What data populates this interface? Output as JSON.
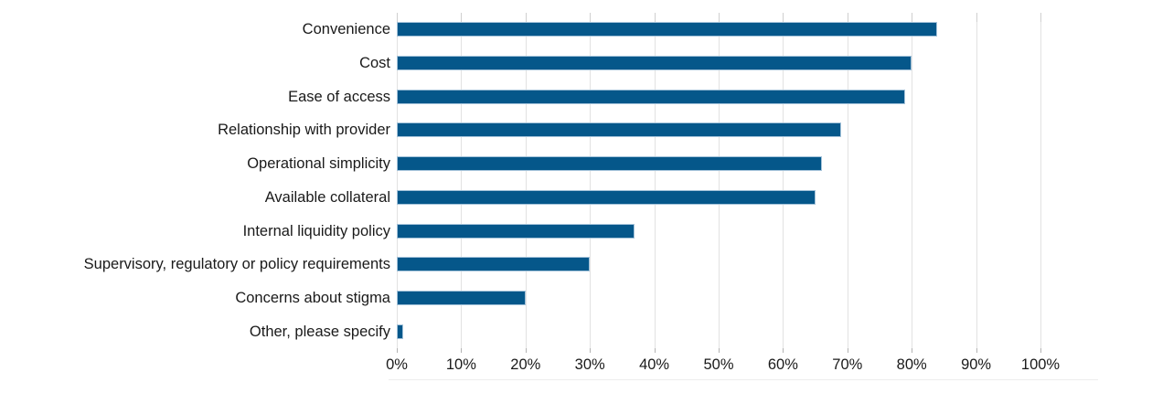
{
  "chart_data": {
    "type": "bar",
    "orientation": "horizontal",
    "title": "",
    "categories": [
      "Convenience",
      "Cost",
      "Ease of access",
      "Relationship with provider",
      "Operational simplicity",
      "Available collateral",
      "Internal liquidity policy",
      "Supervisory, regulatory or policy requirements",
      "Concerns about stigma",
      "Other, please specify"
    ],
    "values": [
      84,
      80,
      79,
      69,
      66,
      65,
      37,
      30,
      20,
      1
    ],
    "unit": "%",
    "xlabel": "",
    "ylabel": "",
    "xlim": [
      0,
      100
    ],
    "x_ticks": [
      {
        "value": 0,
        "label": "0%"
      },
      {
        "value": 10,
        "label": "10%"
      },
      {
        "value": 20,
        "label": "20%"
      },
      {
        "value": 30,
        "label": "30%"
      },
      {
        "value": 40,
        "label": "40%"
      },
      {
        "value": 50,
        "label": "50%"
      },
      {
        "value": 60,
        "label": "60%"
      },
      {
        "value": 70,
        "label": "70%"
      },
      {
        "value": 80,
        "label": "80%"
      },
      {
        "value": 90,
        "label": "90%"
      },
      {
        "value": 100,
        "label": "100%"
      }
    ],
    "grid": "vertical",
    "legend": "none"
  },
  "style": {
    "bar_color": "#05578a",
    "bar_border_color": "#a3c2d9",
    "gridline_color": "#e2e2e2",
    "tick_color": "#b3b3b3",
    "text_color": "#1a1a1a",
    "background": "#ffffff"
  }
}
